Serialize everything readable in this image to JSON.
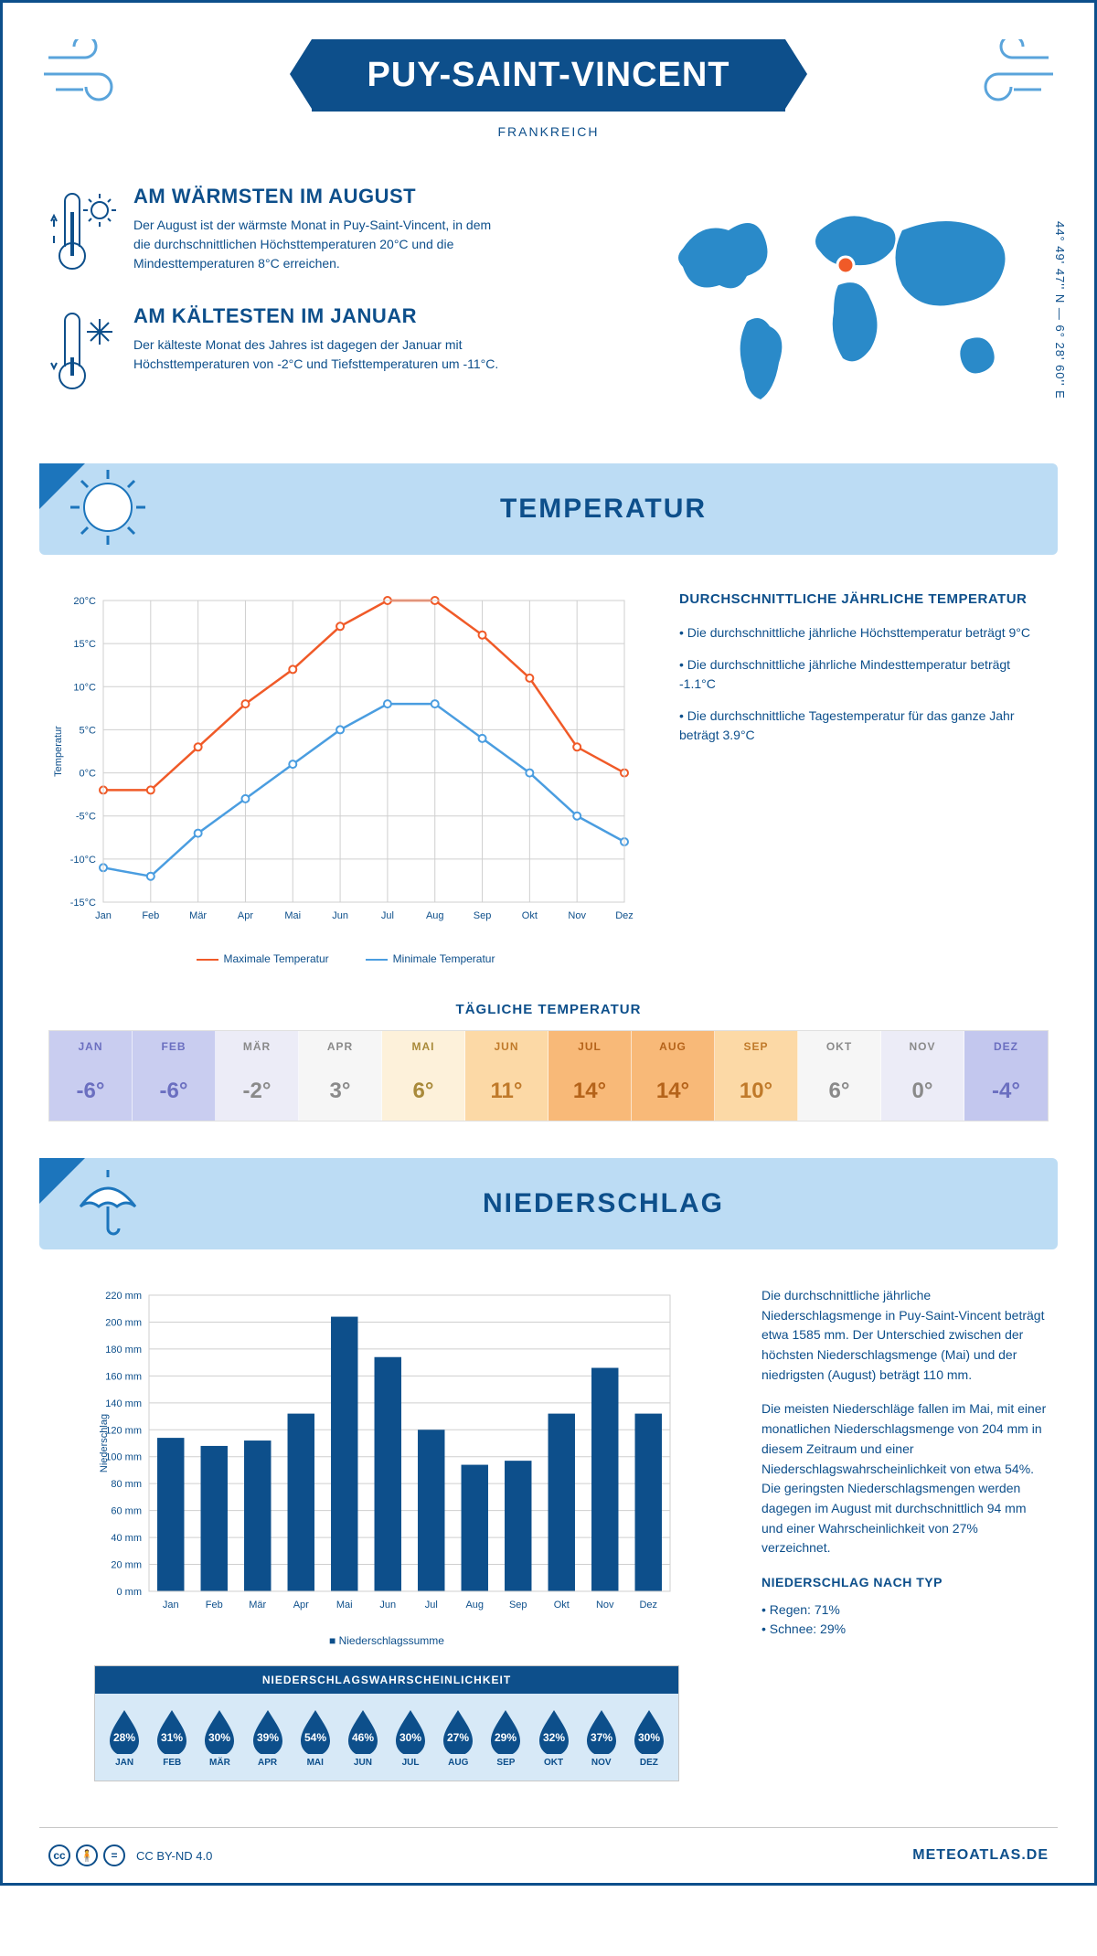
{
  "header": {
    "title": "PUY-SAINT-VINCENT",
    "subtitle": "FRANKREICH",
    "coords": "44° 49' 47'' N — 6° 28' 60'' E"
  },
  "facts": {
    "warm_title": "AM WÄRMSTEN IM AUGUST",
    "warm_text": "Der August ist der wärmste Monat in Puy-Saint-Vincent, in dem die durchschnittlichen Höchsttemperaturen 20°C und die Mindesttemperaturen 8°C erreichen.",
    "cold_title": "AM KÄLTESTEN IM JANUAR",
    "cold_text": "Der kälteste Monat des Jahres ist dagegen der Januar mit Höchsttemperaturen von -2°C und Tiefsttemperaturen um -11°C."
  },
  "sections": {
    "temperature": "TEMPERATUR",
    "precip": "NIEDERSCHLAG"
  },
  "temp_chart": {
    "type": "line",
    "months": [
      "Jan",
      "Feb",
      "Mär",
      "Apr",
      "Mai",
      "Jun",
      "Jul",
      "Aug",
      "Sep",
      "Okt",
      "Nov",
      "Dez"
    ],
    "max": [
      -2,
      -2,
      3,
      8,
      12,
      17,
      20,
      20,
      16,
      11,
      3,
      0
    ],
    "min": [
      -11,
      -12,
      -7,
      -3,
      1,
      5,
      8,
      8,
      4,
      0,
      -5,
      -8
    ],
    "ylim": [
      -15,
      20
    ],
    "ystep": 5,
    "max_color": "#f05a28",
    "min_color": "#4a9de0",
    "grid_color": "#cfcfcf",
    "ylabel": "Temperatur",
    "legend_max": "Maximale Temperatur",
    "legend_min": "Minimale Temperatur"
  },
  "temp_side": {
    "heading": "DURCHSCHNITTLICHE JÄHRLICHE TEMPERATUR",
    "b1": "• Die durchschnittliche jährliche Höchsttemperatur beträgt 9°C",
    "b2": "• Die durchschnittliche jährliche Mindesttemperatur beträgt -1.1°C",
    "b3": "• Die durchschnittliche Tagestemperatur für das ganze Jahr beträgt 3.9°C"
  },
  "daily": {
    "heading": "TÄGLICHE TEMPERATUR",
    "months": [
      "JAN",
      "FEB",
      "MÄR",
      "APR",
      "MAI",
      "JUN",
      "JUL",
      "AUG",
      "SEP",
      "OKT",
      "NOV",
      "DEZ"
    ],
    "values": [
      "-6°",
      "-6°",
      "-2°",
      "3°",
      "6°",
      "11°",
      "14°",
      "14°",
      "10°",
      "6°",
      "0°",
      "-4°"
    ],
    "bg": [
      "#c9cdf0",
      "#c9cdf0",
      "#ececf7",
      "#f6f6f6",
      "#fdf1da",
      "#fcd9a6",
      "#f8b978",
      "#f8b978",
      "#fcd9a6",
      "#f6f6f6",
      "#ececf7",
      "#c3c7ee"
    ],
    "fg": [
      "#6b6fc0",
      "#6b6fc0",
      "#8a8a8a",
      "#8a8a8a",
      "#a98a3a",
      "#c07a2a",
      "#b5631a",
      "#b5631a",
      "#c07a2a",
      "#8a8a8a",
      "#8a8a8a",
      "#6b6fc0"
    ]
  },
  "precip_chart": {
    "type": "bar",
    "months": [
      "Jan",
      "Feb",
      "Mär",
      "Apr",
      "Mai",
      "Jun",
      "Jul",
      "Aug",
      "Sep",
      "Okt",
      "Nov",
      "Dez"
    ],
    "values": [
      114,
      108,
      112,
      132,
      204,
      174,
      120,
      94,
      97,
      132,
      166,
      132
    ],
    "ylim": [
      0,
      220
    ],
    "ystep": 20,
    "bar_color": "#0d4f8b",
    "grid_color": "#cfcfcf",
    "ylabel": "Niederschlag",
    "legend": "Niederschlagssumme"
  },
  "precip_side": {
    "p1": "Die durchschnittliche jährliche Niederschlagsmenge in Puy-Saint-Vincent beträgt etwa 1585 mm. Der Unterschied zwischen der höchsten Niederschlagsmenge (Mai) und der niedrigsten (August) beträgt 110 mm.",
    "p2": "Die meisten Niederschläge fallen im Mai, mit einer monatlichen Niederschlagsmenge von 204 mm in diesem Zeitraum und einer Niederschlagswahrscheinlichkeit von etwa 54%. Die geringsten Niederschlagsmengen werden dagegen im August mit durchschnittlich 94 mm und einer Wahrscheinlichkeit von 27% verzeichnet.",
    "type_head": "NIEDERSCHLAG NACH TYP",
    "type1": "• Regen: 71%",
    "type2": "• Schnee: 29%"
  },
  "prob": {
    "heading": "NIEDERSCHLAGSWAHRSCHEINLICHKEIT",
    "months": [
      "JAN",
      "FEB",
      "MÄR",
      "APR",
      "MAI",
      "JUN",
      "JUL",
      "AUG",
      "SEP",
      "OKT",
      "NOV",
      "DEZ"
    ],
    "values": [
      "28%",
      "31%",
      "30%",
      "39%",
      "54%",
      "46%",
      "30%",
      "27%",
      "29%",
      "32%",
      "37%",
      "30%"
    ],
    "drop_color": "#0d4f8b"
  },
  "footer": {
    "license": "CC BY-ND 4.0",
    "site": "METEOATLAS.DE"
  },
  "colors": {
    "brand": "#0d4f8b",
    "light": "#bcdcf4",
    "accent": "#1c75bc"
  }
}
